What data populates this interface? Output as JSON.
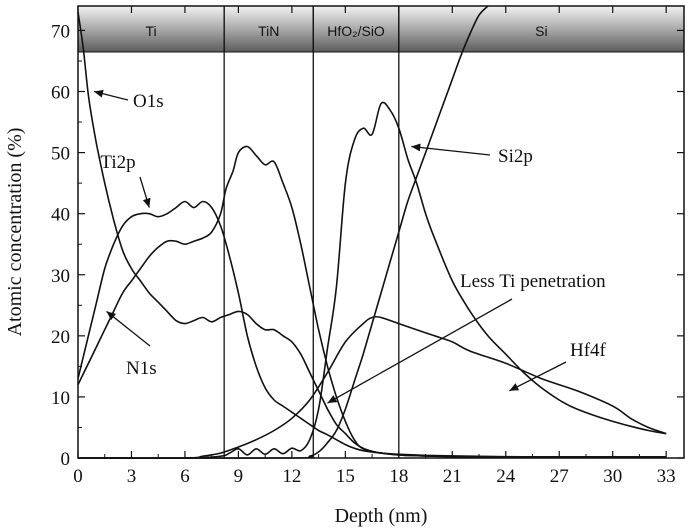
{
  "chart_data": {
    "type": "line",
    "xlabel": "Depth (nm)",
    "ylabel": "Atomic concentration (%)",
    "xlim": [
      0,
      34
    ],
    "ylim": [
      0,
      74
    ],
    "xticks": [
      0,
      3,
      6,
      9,
      12,
      15,
      18,
      21,
      24,
      27,
      30,
      33
    ],
    "yticks": [
      0,
      10,
      20,
      30,
      40,
      50,
      60,
      70
    ],
    "grid": false,
    "layer_boundaries": [
      8.2,
      13.2,
      18.0
    ],
    "layers": [
      {
        "label": "Ti",
        "from": 0,
        "to": 8.2
      },
      {
        "label": "TiN",
        "from": 8.2,
        "to": 13.2
      },
      {
        "label": "HfO₂/SiO",
        "from": 13.2,
        "to": 18.0
      },
      {
        "label": "Si",
        "from": 18.0,
        "to": 34
      }
    ],
    "series": [
      {
        "name": "O1s",
        "x": [
          0,
          0.3,
          0.6,
          1,
          1.5,
          2,
          2.5,
          3,
          3.5,
          4,
          4.5,
          5,
          5.5,
          6,
          6.5,
          7,
          7.5,
          8,
          8.5,
          9,
          9.5,
          10,
          10.5,
          11,
          11.5,
          12,
          12.5,
          13,
          13.5,
          14,
          14.5,
          15,
          15.5,
          16,
          16.5,
          17,
          18,
          19,
          20,
          22,
          24,
          27,
          30,
          33
        ],
        "y": [
          73,
          67,
          59,
          52,
          45,
          39,
          34,
          31,
          29,
          27,
          25.5,
          24,
          22.5,
          22,
          22.5,
          23,
          22.3,
          23,
          23.5,
          24,
          23.5,
          22,
          21,
          21,
          20,
          19,
          17,
          14,
          11,
          8,
          5.5,
          4,
          2.5,
          1.6,
          1.1,
          0.8,
          0.5,
          0.4,
          0.3,
          0.2,
          0.2,
          0.1,
          0.1,
          0.1
        ]
      },
      {
        "name": "Ti2p",
        "x": [
          0,
          0.5,
          1,
          1.5,
          2,
          2.5,
          3,
          3.5,
          4,
          4.5,
          5,
          5.5,
          6,
          6.5,
          7,
          7.5,
          8,
          8.5,
          9,
          9.5,
          10,
          10.5,
          11,
          11.5,
          12,
          12.5,
          13,
          13.5,
          14,
          14.5,
          15,
          15.5,
          16,
          17,
          18,
          20,
          22,
          25,
          28,
          31,
          33
        ],
        "y": [
          13,
          19,
          25,
          31,
          35,
          38,
          39.5,
          40,
          40,
          39.5,
          40,
          41,
          42,
          41,
          42,
          41,
          38,
          33,
          27,
          20,
          15,
          11.5,
          9.5,
          8.5,
          7.5,
          6.5,
          5.5,
          4.5,
          3.8,
          3,
          2.2,
          1.6,
          1.2,
          0.8,
          0.6,
          0.4,
          0.3,
          0.2,
          0.2,
          0.2,
          0.2
        ]
      },
      {
        "name": "N1s",
        "x": [
          0,
          0.5,
          1,
          1.5,
          2,
          2.5,
          3,
          3.5,
          4,
          4.5,
          5,
          5.5,
          6,
          6.5,
          7,
          7.5,
          8,
          8.3,
          8.7,
          9,
          9.5,
          10,
          10.5,
          11,
          11.5,
          12,
          12.5,
          13,
          13.5,
          14,
          14.5,
          15,
          15.5,
          16,
          17,
          18,
          20,
          22,
          25,
          28,
          31,
          33
        ],
        "y": [
          12,
          15,
          18,
          21,
          24,
          27,
          29,
          31,
          33,
          34.5,
          35.5,
          35.5,
          35,
          35.5,
          36,
          37,
          40,
          44,
          47,
          50,
          51,
          49.5,
          48,
          48.5,
          45,
          41,
          35,
          28,
          21,
          15,
          10,
          6,
          3,
          1.5,
          0.8,
          0.5,
          0.3,
          0.2,
          0.2,
          0.2,
          0.2,
          0.2
        ]
      },
      {
        "name": "Hf4f",
        "x": [
          0,
          6,
          8,
          8.5,
          9,
          9.5,
          10,
          10.5,
          11,
          11.5,
          12,
          12.5,
          13,
          13.5,
          14,
          14.5,
          15,
          15.5,
          16,
          16.5,
          17,
          17.5,
          18,
          18.5,
          19,
          19.5,
          20,
          21,
          22,
          23,
          24,
          25,
          26,
          27,
          28,
          30,
          32,
          33
        ],
        "y": [
          0,
          0,
          0.3,
          0.8,
          1.5,
          0.5,
          1.5,
          0.6,
          1.5,
          0.7,
          1.6,
          1.2,
          3,
          8,
          18,
          28,
          45,
          52,
          54,
          53,
          58,
          57,
          54,
          49,
          45,
          40,
          36,
          29,
          24,
          20,
          17,
          14,
          11.5,
          9.5,
          8,
          6,
          4.5,
          4
        ]
      },
      {
        "name": "Si2p",
        "x": [
          0,
          12,
          13,
          13.5,
          14,
          14.5,
          15,
          15.5,
          16,
          16.5,
          17,
          17.5,
          18,
          18.5,
          19,
          19.5,
          20,
          20.5,
          21,
          21.5,
          22,
          22.5,
          23
        ],
        "y": [
          0,
          0,
          0.3,
          1,
          2.5,
          4.5,
          8,
          12.5,
          17,
          22,
          27,
          32,
          37,
          42,
          46,
          50,
          54,
          58,
          62,
          66,
          69.5,
          72.5,
          74
        ]
      },
      {
        "name": "",
        "x": [
          0,
          6,
          7,
          8,
          9,
          10,
          11,
          12,
          13,
          14,
          15,
          16,
          16.5,
          17,
          18,
          19,
          20,
          21,
          22,
          24,
          26,
          28,
          30,
          31,
          32,
          33
        ],
        "y": [
          0,
          0,
          0.3,
          0.8,
          1.8,
          3,
          4.5,
          6.5,
          9.5,
          14,
          19,
          22,
          23,
          23,
          22,
          21,
          20,
          19,
          17.5,
          15.5,
          13,
          11,
          8.5,
          6.5,
          5,
          4
        ]
      }
    ],
    "annotations": [
      {
        "text": "O1s",
        "points_to": [
          0.9,
          60
        ]
      },
      {
        "text": "Ti2p",
        "points_to": [
          4,
          41
        ]
      },
      {
        "text": "N1s",
        "points_to": [
          1.6,
          24
        ]
      },
      {
        "text": "Si2p",
        "points_to": [
          18.7,
          51
        ]
      },
      {
        "text": "Less Ti penetration",
        "points_to": [
          14,
          9
        ]
      },
      {
        "text": "Hf4f",
        "points_to": [
          24.2,
          11
        ]
      }
    ]
  }
}
